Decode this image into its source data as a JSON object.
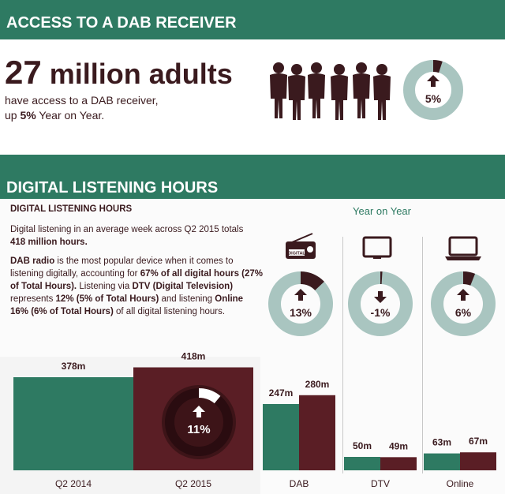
{
  "section1": {
    "title": "ACCESS TO A DAB RECEIVER",
    "headline_number": "27",
    "headline_text": "million adults",
    "sub_line1": "have access to a DAB receiver,",
    "sub_line2_prefix": "up ",
    "sub_line2_bold": "5%",
    "sub_line2_suffix": " Year on Year.",
    "gauge_value": "5%",
    "gauge_fraction": 0.05,
    "people_icon": "people-silhouettes-icon"
  },
  "section2": {
    "title": "DIGITAL LISTENING HOURS",
    "subtitle": "DIGITAL LISTENING HOURS",
    "para1_a": "Digital listening in an average week across  Q2 2015 totals",
    "para1_b": "418 million hours.",
    "para2": [
      {
        "t": "DAB radio",
        "b": true
      },
      {
        "t": " is  the most popular device when it comes to listening digitally, accounting for ",
        "b": false
      },
      {
        "t": "67% of all digital hours (27% of Total Hours).",
        "b": true
      },
      {
        "t": " Listening via ",
        "b": false
      },
      {
        "t": "DTV (Digital Television)",
        "b": true
      },
      {
        "t": " represents ",
        "b": false
      },
      {
        "t": "12% (5% of Total Hours)",
        "b": true
      },
      {
        "t": " and listening ",
        "b": false
      },
      {
        "t": "Online 16% (6% of Total Hours)",
        "b": true
      },
      {
        "t": " of all digital listening hours.",
        "b": false
      }
    ],
    "yoy_label": "Year on Year",
    "devices": [
      {
        "name": "DAB",
        "icon": "radio-icon",
        "icon_text": "DIGITAL",
        "change": "13%",
        "fraction": 0.13,
        "direction": "up"
      },
      {
        "name": "DTV",
        "icon": "tv-icon",
        "change": "-1%",
        "fraction": 0.01,
        "direction": "down"
      },
      {
        "name": "Online",
        "icon": "laptop-icon",
        "change": "6%",
        "fraction": 0.06,
        "direction": "up"
      }
    ]
  },
  "chart_data": [
    {
      "type": "bar",
      "categories": [
        "Q2 2014",
        "Q2 2015"
      ],
      "values": [
        378,
        418
      ],
      "value_labels": [
        "378m",
        "418m"
      ],
      "growth_label": "11%",
      "growth_fraction": 0.11,
      "colors": [
        "#2e7a62",
        "#5a1e25"
      ]
    },
    {
      "type": "bar",
      "categories": [
        "DAB",
        "DTV",
        "Online"
      ],
      "series": [
        {
          "values": [
            247,
            50,
            63
          ],
          "labels": [
            "247m",
            "50m",
            "63m"
          ],
          "color": "#2e7a62"
        },
        {
          "values": [
            280,
            49,
            67
          ],
          "labels": [
            "280m",
            "49m",
            "67m"
          ],
          "color": "#5a1e25"
        }
      ]
    }
  ],
  "colors": {
    "green": "#2e7a62",
    "maroon": "#5a1e25",
    "dark": "#3a1a1e",
    "ring": "#a9c5c0"
  }
}
